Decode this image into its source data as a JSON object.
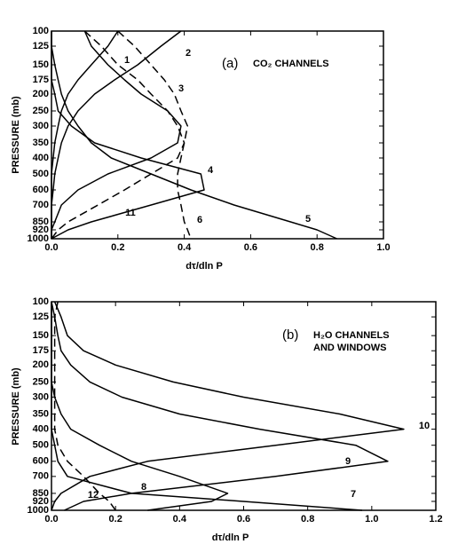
{
  "chart_data": [
    {
      "type": "line",
      "annotation": "(a)",
      "subtitle": "CO₂ CHANNELS",
      "y_label": "PRESSURE (mb)",
      "x_label": "dτ/dln P",
      "y": [
        100,
        125,
        150,
        175,
        200,
        250,
        300,
        350,
        400,
        500,
        600,
        700,
        850,
        920,
        1000
      ],
      "ylim": [
        100,
        1000
      ],
      "yticks": [
        100,
        125,
        150,
        175,
        200,
        250,
        300,
        350,
        400,
        500,
        600,
        700,
        850,
        920,
        1000
      ],
      "xlim": [
        0,
        1
      ],
      "xticks": [
        {
          "value": 0,
          "label": "0.0"
        },
        0.2,
        0.4,
        0.6,
        0.8,
        {
          "value": 1,
          "label": "1.0"
        }
      ],
      "series": [
        {
          "name": "1",
          "color": "#000000",
          "dashed": false,
          "values": [
            0.2,
            0.17,
            0.12,
            0.08,
            0.05,
            0.03,
            0.02,
            0.01,
            0.005,
            0,
            0,
            0,
            0,
            0,
            0
          ]
        },
        {
          "name": "2",
          "color": "#000000",
          "dashed": false,
          "values": [
            0.39,
            0.33,
            0.26,
            0.19,
            0.13,
            0.08,
            0.05,
            0.03,
            0.02,
            0.01,
            0.005,
            0,
            0,
            0,
            0
          ]
        },
        {
          "name": "3",
          "color": "#000000",
          "dashed": false,
          "values": [
            0.1,
            0.12,
            0.17,
            0.22,
            0.27,
            0.35,
            0.39,
            0.38,
            0.3,
            0.17,
            0.08,
            0.03,
            0.01,
            0,
            0
          ]
        },
        {
          "name": "4",
          "color": "#000000",
          "dashed": false,
          "values": [
            0,
            0,
            0,
            0,
            0.01,
            0.02,
            0.06,
            0.13,
            0.27,
            0.45,
            0.46,
            0.3,
            0.12,
            0.05,
            0
          ]
        },
        {
          "name": "5",
          "color": "#000000",
          "dashed": false,
          "values": [
            0,
            0,
            0.01,
            0.02,
            0.03,
            0.05,
            0.08,
            0.12,
            0.18,
            0.3,
            0.42,
            0.55,
            0.72,
            0.8,
            0.86
          ]
        },
        {
          "name": "6",
          "color": "#000000",
          "dashed": true,
          "values": [
            0.2,
            0.25,
            0.3,
            0.34,
            0.37,
            0.39,
            0.41,
            0.4,
            0.39,
            0.38,
            0.38,
            0.39,
            0.4,
            0.41,
            0.42
          ]
        },
        {
          "name": "11",
          "color": "#000000",
          "dashed": true,
          "values": [
            0.1,
            0.15,
            0.2,
            0.26,
            0.3,
            0.35,
            0.38,
            0.4,
            0.38,
            0.3,
            0.22,
            0.14,
            0.05,
            0.02,
            0
          ]
        }
      ]
    },
    {
      "type": "line",
      "annotation": "(b)",
      "subtitle": "H₂O CHANNELS",
      "subtitle2": "AND WINDOWS",
      "y_label": "PRESSURE (mb)",
      "x_label": "dτ/dln P",
      "y": [
        100,
        125,
        150,
        175,
        200,
        250,
        300,
        350,
        400,
        500,
        600,
        700,
        850,
        920,
        1000
      ],
      "ylim": [
        100,
        1000
      ],
      "yticks": [
        100,
        125,
        150,
        175,
        200,
        250,
        300,
        350,
        400,
        500,
        600,
        700,
        850,
        920,
        1000
      ],
      "xlim": [
        0,
        1.2
      ],
      "xticks": [
        {
          "value": 0,
          "label": "0.0"
        },
        0.2,
        0.4,
        0.6,
        0.8,
        {
          "value": 1,
          "label": "1.0"
        },
        1.2
      ],
      "series": [
        {
          "name": "7",
          "color": "#000000",
          "dashed": false,
          "values": [
            0,
            0,
            0,
            0,
            0,
            0,
            0,
            0,
            0,
            0.01,
            0.02,
            0.05,
            0.25,
            0.6,
            0.97
          ]
        },
        {
          "name": "8",
          "color": "#000000",
          "dashed": false,
          "values": [
            0,
            0,
            0,
            0,
            0,
            0,
            0.01,
            0.03,
            0.06,
            0.15,
            0.25,
            0.4,
            0.55,
            0.5,
            0.3
          ]
        },
        {
          "name": "9",
          "color": "#000000",
          "dashed": false,
          "values": [
            0,
            0.01,
            0.02,
            0.03,
            0.06,
            0.12,
            0.22,
            0.4,
            0.65,
            0.95,
            1.05,
            0.7,
            0.25,
            0.1,
            0.04
          ]
        },
        {
          "name": "10",
          "color": "#000000",
          "dashed": false,
          "values": [
            0.01,
            0.03,
            0.05,
            0.1,
            0.2,
            0.38,
            0.6,
            0.9,
            1.1,
            0.7,
            0.3,
            0.12,
            0.03,
            0.01,
            0
          ]
        },
        {
          "name": "12",
          "color": "#000000",
          "dashed": true,
          "values": [
            0.02,
            0.01,
            0.01,
            0.01,
            0.01,
            0.01,
            0.01,
            0.01,
            0.01,
            0.02,
            0.05,
            0.1,
            0.15,
            0.18,
            0.2
          ]
        }
      ]
    }
  ]
}
